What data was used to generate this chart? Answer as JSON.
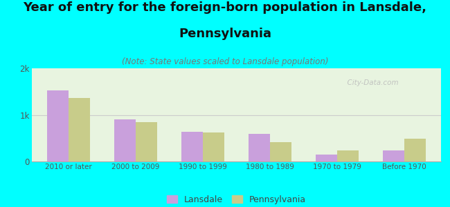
{
  "categories": [
    "2010 or later",
    "2000 to 2009",
    "1990 to 1999",
    "1980 to 1989",
    "1970 to 1979",
    "Before 1970"
  ],
  "lansdale": [
    1520,
    900,
    640,
    600,
    150,
    230
  ],
  "pennsylvania": [
    1360,
    850,
    620,
    420,
    240,
    490
  ],
  "lansdale_color": "#c9a0dc",
  "pennsylvania_color": "#c8cc8a",
  "title_line1": "Year of entry for the foreign-born population in Lansdale,",
  "title_line2": "Pennsylvania",
  "subtitle": "(Note: State values scaled to Lansdale population)",
  "ylim": [
    0,
    2000
  ],
  "yticks": [
    0,
    1000,
    2000
  ],
  "ytick_labels": [
    "0",
    "1k",
    "2k"
  ],
  "background_color": "#00ffff",
  "plot_bg_color": "#e8f4e0",
  "grid_color": "#d0e8d0",
  "watermark": "  City-Data.com",
  "title_fontsize": 13,
  "subtitle_fontsize": 8.5,
  "bar_width": 0.32,
  "legend_label1": "Lansdale",
  "legend_label2": "Pennsylvania"
}
